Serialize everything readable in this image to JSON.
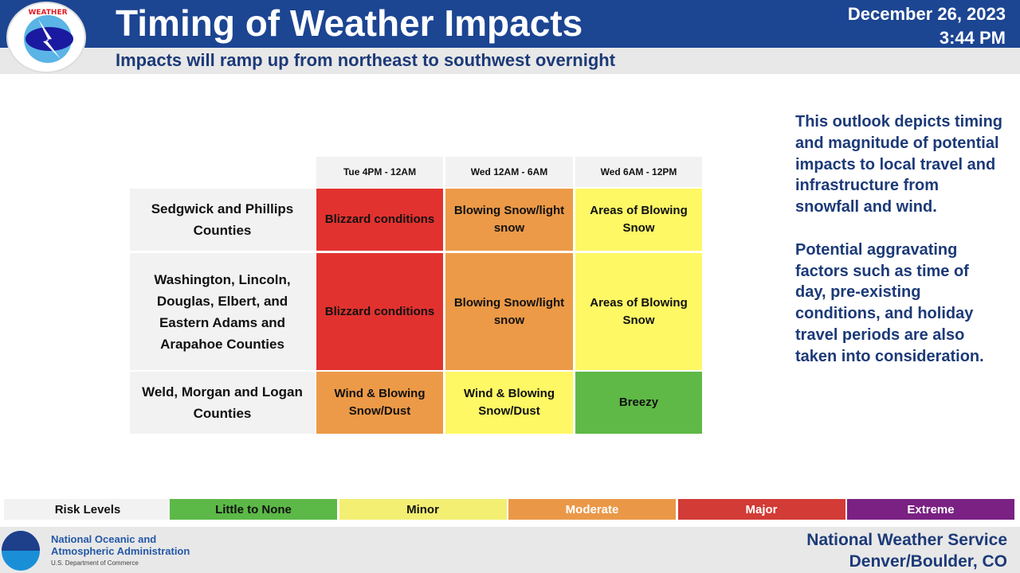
{
  "header": {
    "title": "Timing of Weather Impacts",
    "subtitle": "Impacts will ramp up from northeast to southwest overnight",
    "date": "December 26, 2023",
    "time": "3:44 PM",
    "logo_text": "NATIONAL WEATHER SERVICE"
  },
  "table": {
    "columns": [
      "Tue 4PM - 12AM",
      "Wed 12AM - 6AM",
      "Wed 6AM - 12PM"
    ],
    "rows": [
      {
        "label": "Sedgwick and Phillips Counties",
        "cells": [
          "Blizzard conditions",
          "Blowing Snow/light snow",
          "Areas of Blowing Snow"
        ],
        "levels": [
          "Major",
          "Moderate",
          "Minor"
        ]
      },
      {
        "label": "Washington, Lincoln, Douglas, Elbert, and Eastern Adams and Arapahoe Counties",
        "cells": [
          "Blizzard conditions",
          "Blowing Snow/light snow",
          "Areas of Blowing Snow"
        ],
        "levels": [
          "Major",
          "Moderate",
          "Minor"
        ]
      },
      {
        "label": "Weld, Morgan and Logan Counties",
        "cells": [
          "Wind & Blowing Snow/Dust",
          "Wind & Blowing Snow/Dust",
          "Breezy"
        ],
        "levels": [
          "Moderate",
          "Minor",
          "Little to None"
        ]
      }
    ]
  },
  "side_text": {
    "p1": "This outlook depicts timing and magnitude of potential impacts to local travel and infrastructure from snowfall and wind.",
    "p2": "Potential aggravating factors such as time of day, pre-existing conditions, and holiday travel periods are also taken into consideration."
  },
  "legend": {
    "title": "Risk Levels",
    "levels": [
      {
        "label": "Little to None",
        "color": "#5cb947"
      },
      {
        "label": "Minor",
        "color": "#f3ef73"
      },
      {
        "label": "Moderate",
        "color": "#ea9848"
      },
      {
        "label": "Major",
        "color": "#d23b36"
      },
      {
        "label": "Extreme",
        "color": "#7a2183"
      }
    ]
  },
  "cell_colors": {
    "Major": "#e2322f",
    "Moderate": "#ec9a47",
    "Minor": "#fef865",
    "Little to None": "#5fb946"
  },
  "footer": {
    "noaa_logo": "NOAA",
    "noaa_line1": "National Oceanic and",
    "noaa_line2": "Atmospheric Administration",
    "noaa_line3": "U.S. Department of Commerce",
    "office_line1": "National Weather Service",
    "office_line2": "Denver/Boulder, CO"
  }
}
